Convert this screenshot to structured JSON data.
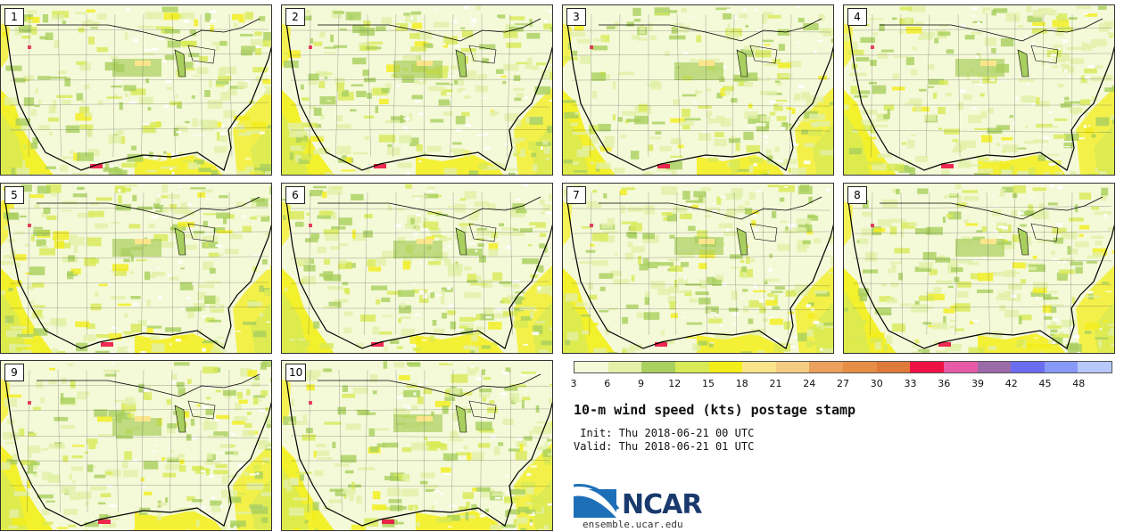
{
  "members": [
    {
      "label": "1"
    },
    {
      "label": "2"
    },
    {
      "label": "3"
    },
    {
      "label": "4"
    },
    {
      "label": "5"
    },
    {
      "label": "6"
    },
    {
      "label": "7"
    },
    {
      "label": "8"
    },
    {
      "label": "9"
    },
    {
      "label": "10"
    }
  ],
  "colorbar": {
    "colors": [
      "#f4f9d8",
      "#e2f0a8",
      "#a9cf5e",
      "#d8ea55",
      "#f3ee1a",
      "#fbe58a",
      "#f3cd83",
      "#eba05b",
      "#e68e45",
      "#df7b3a",
      "#ee1144",
      "#e75aa6",
      "#9b6aa8",
      "#6b6df0",
      "#8899f7",
      "#b7c9fb"
    ],
    "ticks": [
      "3",
      "6",
      "9",
      "12",
      "15",
      "18",
      "21",
      "24",
      "27",
      "30",
      "33",
      "36",
      "39",
      "42",
      "45",
      "48"
    ]
  },
  "title": "10-m wind speed (kts) postage stamp",
  "init_text": " Init: Thu 2018-06-21 00 UTC",
  "valid_text": "Valid: Thu 2018-06-21 01 UTC",
  "logo": {
    "text": "NCAR",
    "site": "ensemble.ucar.edu"
  }
}
